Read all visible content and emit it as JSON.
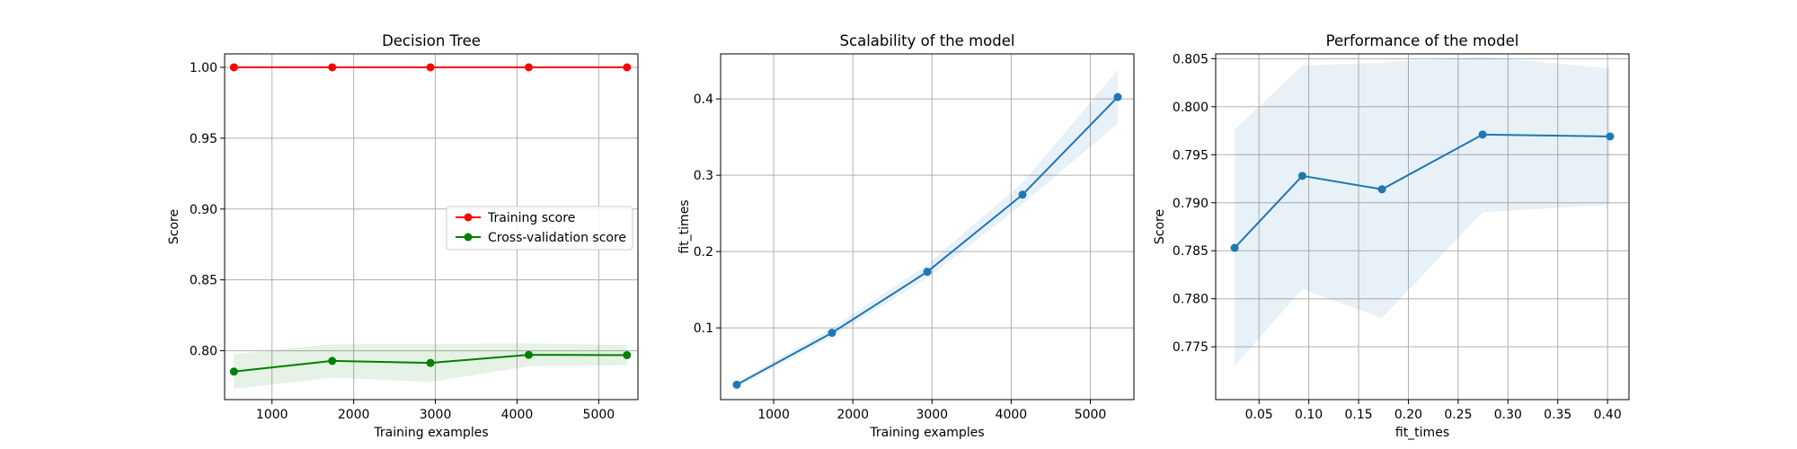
{
  "chart_data": [
    {
      "type": "line",
      "title": "Decision Tree",
      "xlabel": "Training examples",
      "ylabel": "Score",
      "xlim": [
        420,
        5480
      ],
      "ylim": [
        0.7655,
        1.0095
      ],
      "xticks": [
        1000,
        2000,
        3000,
        4000,
        5000
      ],
      "xtick_labels": [
        "1000",
        "2000",
        "3000",
        "4000",
        "5000"
      ],
      "yticks": [
        0.8,
        0.85,
        0.9,
        0.95,
        1.0
      ],
      "ytick_labels": [
        "0.80",
        "0.85",
        "0.90",
        "0.95",
        "1.00"
      ],
      "grid": true,
      "legend": "center-right",
      "series": [
        {
          "name": "Training score",
          "color": "#ff0000",
          "x": [
            534,
            1737,
            2940,
            4143,
            5346
          ],
          "y": [
            1.0,
            1.0,
            1.0,
            1.0,
            1.0
          ],
          "band_lower": [
            1.0,
            1.0,
            1.0,
            1.0,
            1.0
          ],
          "band_upper": [
            1.0,
            1.0,
            1.0,
            1.0,
            1.0
          ]
        },
        {
          "name": "Cross-validation score",
          "color": "#008000",
          "x": [
            534,
            1737,
            2940,
            4143,
            5346
          ],
          "y": [
            0.7853,
            0.7928,
            0.7914,
            0.7971,
            0.7969
          ],
          "band_lower": [
            0.773,
            0.781,
            0.778,
            0.789,
            0.7898
          ],
          "band_upper": [
            0.7976,
            0.8046,
            0.8048,
            0.8052,
            0.804
          ]
        }
      ]
    },
    {
      "type": "line",
      "title": "Scalability of the model",
      "xlabel": "Training examples",
      "ylabel": "fit_times",
      "xlim": [
        330,
        5550
      ],
      "ylim": [
        0.006,
        0.459
      ],
      "xticks": [
        1000,
        2000,
        3000,
        4000,
        5000
      ],
      "xtick_labels": [
        "1000",
        "2000",
        "3000",
        "4000",
        "5000"
      ],
      "yticks": [
        0.1,
        0.2,
        0.3,
        0.4
      ],
      "ytick_labels": [
        "0.1",
        "0.2",
        "0.3",
        "0.4"
      ],
      "grid": true,
      "series": [
        {
          "color": "#1f77b4",
          "x": [
            534,
            1737,
            2940,
            4143,
            5346
          ],
          "y": [
            0.0255,
            0.0935,
            0.1735,
            0.2745,
            0.4025
          ],
          "band_lower": [
            0.022,
            0.088,
            0.165,
            0.262,
            0.368
          ],
          "band_upper": [
            0.029,
            0.1,
            0.183,
            0.29,
            0.438
          ]
        }
      ]
    },
    {
      "type": "line",
      "title": "Performance of the model",
      "xlabel": "fit_times",
      "ylabel": "Score",
      "xlim": [
        0.0065,
        0.4215
      ],
      "ylim": [
        0.7695,
        0.8055
      ],
      "xticks": [
        0.05,
        0.1,
        0.15,
        0.2,
        0.25,
        0.3,
        0.35,
        0.4
      ],
      "xtick_labels": [
        "0.05",
        "0.10",
        "0.15",
        "0.20",
        "0.25",
        "0.30",
        "0.35",
        "0.40"
      ],
      "yticks": [
        0.775,
        0.78,
        0.785,
        0.79,
        0.795,
        0.8,
        0.805
      ],
      "ytick_labels": [
        "0.775",
        "0.780",
        "0.785",
        "0.790",
        "0.795",
        "0.800",
        "0.805"
      ],
      "grid": true,
      "series": [
        {
          "color": "#1f77b4",
          "x": [
            0.0255,
            0.0935,
            0.1735,
            0.2745,
            0.4025
          ],
          "y": [
            0.7853,
            0.7928,
            0.7914,
            0.7971,
            0.7969
          ],
          "band_lower": [
            0.773,
            0.781,
            0.778,
            0.789,
            0.7898
          ],
          "band_upper": [
            0.7976,
            0.8043,
            0.8046,
            0.8052,
            0.804
          ]
        }
      ]
    }
  ]
}
